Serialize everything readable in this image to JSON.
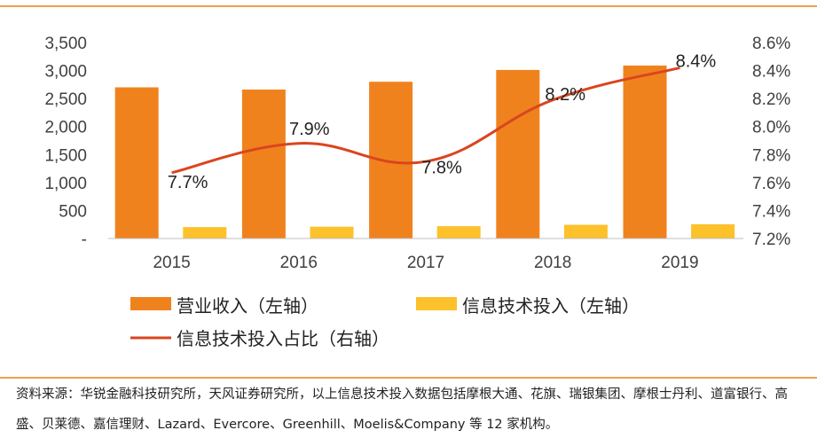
{
  "chart_data": {
    "type": "bar",
    "categories": [
      "2015",
      "2016",
      "2017",
      "2018",
      "2019"
    ],
    "series": [
      {
        "name": "营业收入（左轴）",
        "type": "bar",
        "axis": "left",
        "color": "#f0821e",
        "values": [
          2700,
          2660,
          2800,
          3010,
          3090
        ]
      },
      {
        "name": "信息技术投入（左轴）",
        "type": "bar",
        "axis": "left",
        "color": "#fcc12b",
        "values": [
          205,
          210,
          220,
          245,
          255
        ]
      },
      {
        "name": "信息技术投入占比（右轴）",
        "type": "line",
        "axis": "right",
        "color": "#d9461f",
        "values": [
          7.67,
          7.88,
          7.75,
          8.19,
          8.42
        ],
        "labels": [
          "7.7%",
          "7.9%",
          "7.8%",
          "8.2%",
          "8.4%"
        ]
      }
    ],
    "y_left": {
      "ylim": [
        0,
        3500
      ],
      "ticks": [
        0,
        500,
        1000,
        1500,
        2000,
        2500,
        3000,
        3500
      ],
      "tick_labels": [
        "-",
        "500",
        "1,000",
        "1,500",
        "2,000",
        "2,500",
        "3,000",
        "3,500"
      ]
    },
    "y_right": {
      "ylim": [
        7.2,
        8.6
      ],
      "ticks": [
        7.2,
        7.4,
        7.6,
        7.8,
        8.0,
        8.2,
        8.4,
        8.6
      ],
      "tick_labels": [
        "7.2%",
        "7.4%",
        "7.6%",
        "7.8%",
        "8.0%",
        "8.2%",
        "8.4%",
        "8.6%"
      ]
    },
    "grid": false,
    "legend_position": "bottom"
  },
  "source_note": "资料来源：华锐金融科技研究所，天风证券研究所，以上信息技术投入数据包括摩根大通、花旗、瑞银集团、摩根士丹利、道富银行、高盛、贝莱德、嘉信理财、Lazard、Evercore、Greenhill、Moelis&Company 等 12 家机构。",
  "colors": {
    "rule": "#f0a04b",
    "axis": "#bfbfbf"
  }
}
